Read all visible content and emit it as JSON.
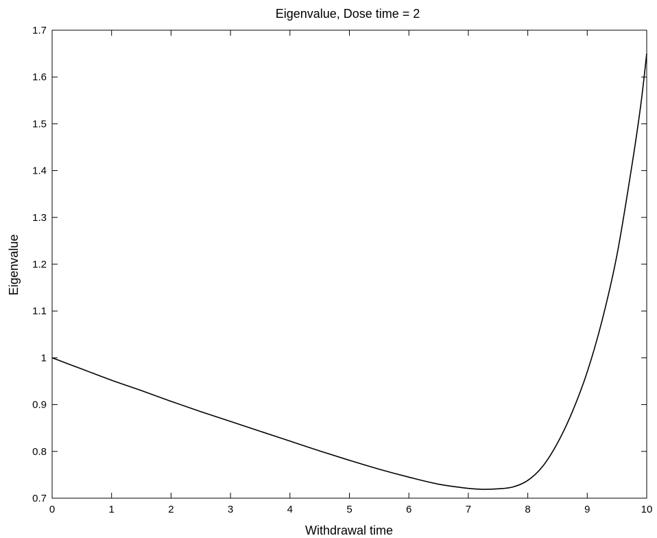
{
  "chart_data": {
    "type": "line",
    "title": "Eigenvalue, Dose time = 2",
    "xlabel": "Withdrawal time",
    "ylabel": "Eigenvalue",
    "xlim": [
      0,
      10
    ],
    "ylim": [
      0.7,
      1.7
    ],
    "grid": false,
    "legend": "none",
    "xticks": [
      "0",
      "1",
      "2",
      "3",
      "4",
      "5",
      "6",
      "7",
      "8",
      "9",
      "10"
    ],
    "yticks": [
      "0.7",
      "0.8",
      "0.9",
      "1",
      "1.1",
      "1.2",
      "1.3",
      "1.4",
      "1.5",
      "1.6",
      "1.7"
    ],
    "series": [
      {
        "color": "#000000",
        "x": [
          0,
          0.5,
          1,
          1.5,
          2,
          2.5,
          3,
          3.5,
          4,
          4.5,
          5,
          5.5,
          6,
          6.5,
          7,
          7.25,
          7.5,
          7.75,
          8,
          8.25,
          8.5,
          8.75,
          9,
          9.25,
          9.5,
          9.75,
          9.9,
          10
        ],
        "y": [
          1.0,
          0.976,
          0.952,
          0.93,
          0.907,
          0.885,
          0.864,
          0.843,
          0.822,
          0.801,
          0.781,
          0.762,
          0.745,
          0.73,
          0.721,
          0.719,
          0.72,
          0.724,
          0.738,
          0.768,
          0.818,
          0.885,
          0.97,
          1.08,
          1.22,
          1.41,
          1.54,
          1.65
        ]
      }
    ]
  }
}
